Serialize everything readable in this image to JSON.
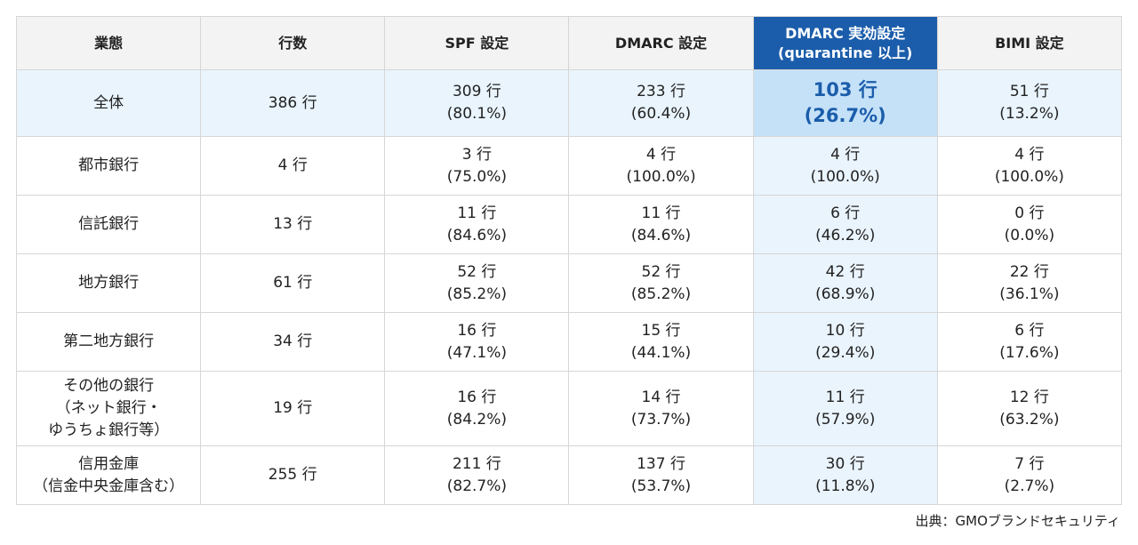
{
  "table": {
    "headers": [
      [
        "業態"
      ],
      [
        "行数"
      ],
      [
        "SPF 設定"
      ],
      [
        "DMARC 設定"
      ],
      [
        "DMARC 実効設定",
        "(quarantine 以上)"
      ],
      [
        "BIMI 設定"
      ]
    ],
    "rows": [
      [
        [
          "全体"
        ],
        [
          "386 行"
        ],
        [
          "309 行",
          "(80.1%)"
        ],
        [
          "233 行",
          "(60.4%)"
        ],
        [
          "103 行",
          "(26.7%)"
        ],
        [
          "51 行",
          "(13.2%)"
        ]
      ],
      [
        [
          "都市銀行"
        ],
        [
          "4 行"
        ],
        [
          "3 行",
          "(75.0%)"
        ],
        [
          "4 行",
          "(100.0%)"
        ],
        [
          "4 行",
          "(100.0%)"
        ],
        [
          "4 行",
          "(100.0%)"
        ]
      ],
      [
        [
          "信託銀行"
        ],
        [
          "13 行"
        ],
        [
          "11 行",
          "(84.6%)"
        ],
        [
          "11 行",
          "(84.6%)"
        ],
        [
          "6 行",
          "(46.2%)"
        ],
        [
          "0 行",
          "(0.0%)"
        ]
      ],
      [
        [
          "地方銀行"
        ],
        [
          "61 行"
        ],
        [
          "52 行",
          "(85.2%)"
        ],
        [
          "52 行",
          "(85.2%)"
        ],
        [
          "42 行",
          "(68.9%)"
        ],
        [
          "22 行",
          "(36.1%)"
        ]
      ],
      [
        [
          "第二地方銀行"
        ],
        [
          "34 行"
        ],
        [
          "16 行",
          "(47.1%)"
        ],
        [
          "15 行",
          "(44.1%)"
        ],
        [
          "10 行",
          "(29.4%)"
        ],
        [
          "6 行",
          "(17.6%)"
        ]
      ],
      [
        [
          "その他の銀行",
          "（ネット銀行・",
          "ゆうちょ銀行等）"
        ],
        [
          "19 行"
        ],
        [
          "16 行",
          "(84.2%)"
        ],
        [
          "14 行",
          "(73.7%)"
        ],
        [
          "11 行",
          "(57.9%)"
        ],
        [
          "12 行",
          "(63.2%)"
        ]
      ],
      [
        [
          "信用金庫",
          "（信金中央金庫含む）"
        ],
        [
          "255 行"
        ],
        [
          "211 行",
          "(82.7%)"
        ],
        [
          "137 行",
          "(53.7%)"
        ],
        [
          "30 行",
          "(11.8%)"
        ],
        [
          "7 行",
          "(2.7%)"
        ]
      ]
    ]
  },
  "source": "出典：GMOブランドセキュリティ"
}
